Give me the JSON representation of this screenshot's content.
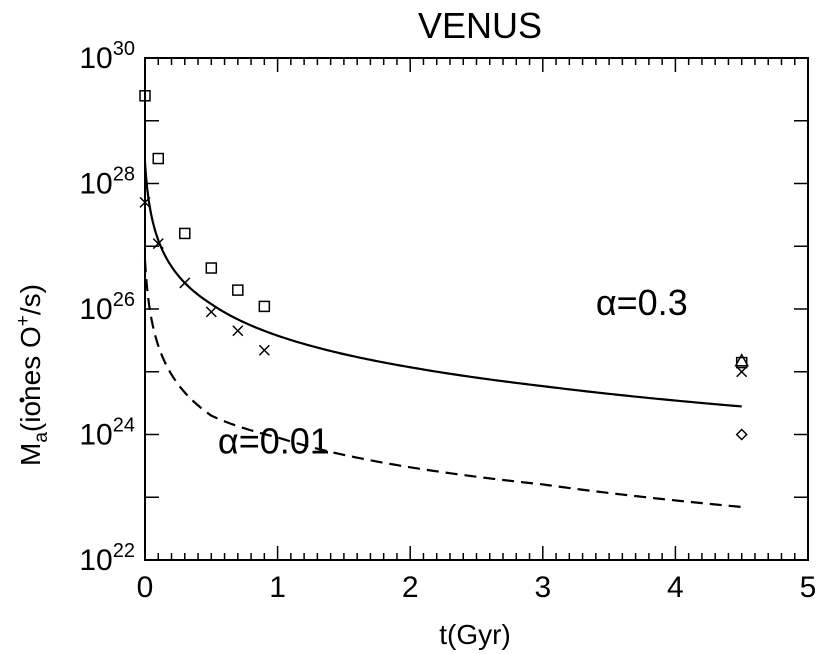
{
  "chart_data": {
    "type": "line",
    "title": "VENUS",
    "xlabel": "t(Gyr)",
    "ylabel": {
      "main": "M",
      "sub": "a",
      "rest": "(iones O",
      "sup": "+",
      "tail": "/s)"
    },
    "xlim": [
      0,
      5
    ],
    "ylim_log10": [
      22,
      30
    ],
    "y_scale": "log",
    "x_ticks": [
      {
        "v": 0,
        "label": "0"
      },
      {
        "v": 1,
        "label": "1"
      },
      {
        "v": 2,
        "label": "2"
      },
      {
        "v": 3,
        "label": "3"
      },
      {
        "v": 4,
        "label": "4"
      },
      {
        "v": 5,
        "label": "5"
      }
    ],
    "y_ticks": [
      {
        "exp": 22,
        "base": "10",
        "sup": "22"
      },
      {
        "exp": 24,
        "base": "10",
        "sup": "24"
      },
      {
        "exp": 26,
        "base": "10",
        "sup": "26"
      },
      {
        "exp": 28,
        "base": "10",
        "sup": "28"
      },
      {
        "exp": 30,
        "base": "10",
        "sup": "30"
      }
    ],
    "series": [
      {
        "label": "α=0.3",
        "style": "solid",
        "curve_type": "power_law",
        "x": [
          0.0,
          0.5,
          1.0,
          2.0,
          3.0,
          4.5
        ],
        "y": [
          2.2e+28,
          1.2e+26,
          3.76e+25,
          1.18e+25,
          5.9e+24,
          2.8e+24
        ]
      },
      {
        "label": "α=0.01",
        "style": "dashed",
        "curve_type": "power_law",
        "x": [
          0.0,
          0.5,
          1.0,
          2.0,
          3.0,
          4.5
        ],
        "y": [
          6e+26,
          2e+24,
          9e+23,
          3e+23,
          1.6e+23,
          7e+22
        ]
      }
    ],
    "markers": [
      {
        "shape": "square",
        "points": [
          [
            0.0,
            2.5e+29
          ],
          [
            0.1,
            2.5e+28
          ],
          [
            0.3,
            1.6e+27
          ],
          [
            0.5,
            4.5e+26
          ],
          [
            0.7,
            2e+26
          ],
          [
            0.9,
            1.1e+26
          ],
          [
            4.5,
            1.4e+25
          ]
        ]
      },
      {
        "shape": "x",
        "points": [
          [
            0.0,
            5e+27
          ],
          [
            0.1,
            1.1e+27
          ],
          [
            0.3,
            2.6e+26
          ],
          [
            0.5,
            9e+25
          ],
          [
            0.7,
            4.5e+25
          ],
          [
            0.9,
            2.2e+25
          ],
          [
            4.5,
            1e+25
          ]
        ]
      },
      {
        "shape": "triangle",
        "points": [
          [
            4.5,
            1.5e+25
          ]
        ]
      },
      {
        "shape": "diamond",
        "points": [
          [
            4.5,
            1e+24
          ]
        ]
      }
    ],
    "annotations": [
      {
        "text": "α=0.3",
        "x": 3.4,
        "y": 8e+25
      },
      {
        "text": "α=0.01",
        "x": 0.55,
        "y": 5e+23
      }
    ],
    "grid": false,
    "legend": "none"
  }
}
